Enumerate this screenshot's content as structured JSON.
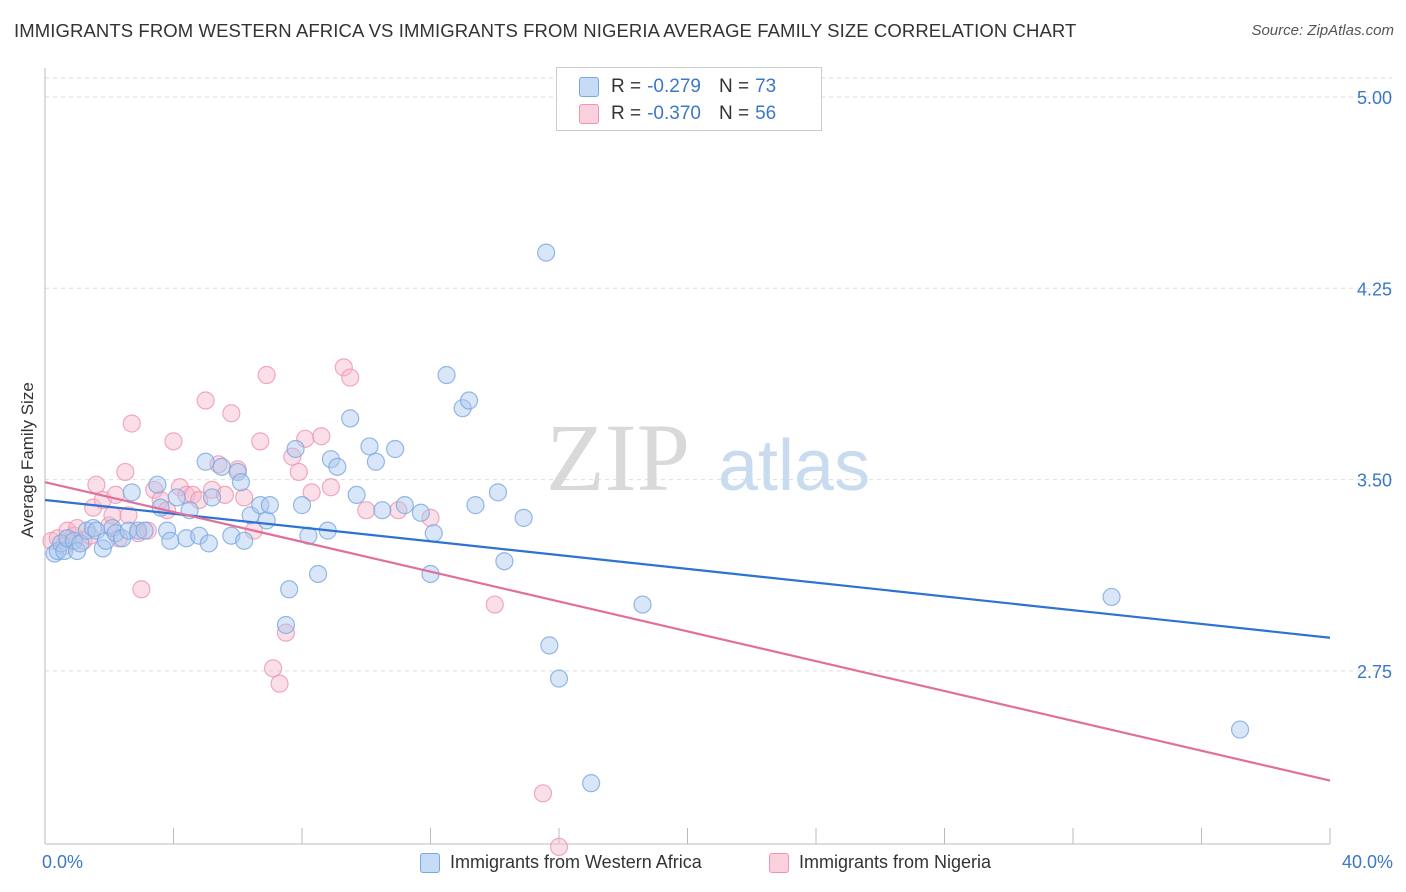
{
  "title": "IMMIGRANTS FROM WESTERN AFRICA VS IMMIGRANTS FROM NIGERIA AVERAGE FAMILY SIZE CORRELATION CHART",
  "source": "Source: ZipAtlas.com",
  "watermark": {
    "zip": "ZIP",
    "atlas": "atlas"
  },
  "legend": {
    "rows": [
      {
        "r_label": "R =",
        "r_value": "-0.279",
        "n_label": "N =",
        "n_value": "73"
      },
      {
        "r_label": "R =",
        "r_value": "-0.370",
        "n_label": "N =",
        "n_value": "56"
      }
    ]
  },
  "bottom_legend": {
    "western_africa": "Immigrants from Western Africa",
    "nigeria": "Immigrants from Nigeria"
  },
  "colors": {
    "blue_fill": "#a8c8f0",
    "blue_stroke": "#7aa8e0",
    "blue_line": "#2e72d2",
    "pink_fill": "#f7b8cb",
    "pink_stroke": "#ee95b2",
    "pink_line": "#e0709a",
    "axis_text": "#3b78c6",
    "grid": "#dddddd"
  },
  "chart_data": {
    "type": "scatter",
    "title": "IMMIGRANTS FROM WESTERN AFRICA VS IMMIGRANTS FROM NIGERIA AVERAGE FAMILY SIZE CORRELATION CHART",
    "xlabel": "",
    "ylabel": "Average Family Size",
    "xlim": [
      0,
      40
    ],
    "ylim": [
      2.05,
      5.1
    ],
    "x_tick_labels": [
      "0.0%",
      "40.0%"
    ],
    "y_ticks": [
      2.75,
      3.5,
      4.25,
      5.0
    ],
    "y_tick_labels": [
      "2.75",
      "3.50",
      "4.25",
      "5.00"
    ],
    "grid": "horizontal dashed",
    "legend_position": "top-center",
    "series": [
      {
        "name": "Immigrants from Western Africa",
        "color": "#a8c8f0",
        "trend": {
          "x": [
            0,
            40
          ],
          "y": [
            3.42,
            2.88
          ]
        },
        "points": [
          [
            0.3,
            3.21
          ],
          [
            0.4,
            3.22
          ],
          [
            0.5,
            3.25
          ],
          [
            0.6,
            3.22
          ],
          [
            0.7,
            3.27
          ],
          [
            0.9,
            3.26
          ],
          [
            1.0,
            3.22
          ],
          [
            1.1,
            3.25
          ],
          [
            1.3,
            3.3
          ],
          [
            1.5,
            3.31
          ],
          [
            1.6,
            3.3
          ],
          [
            1.8,
            3.23
          ],
          [
            1.9,
            3.26
          ],
          [
            2.1,
            3.31
          ],
          [
            2.2,
            3.29
          ],
          [
            2.4,
            3.27
          ],
          [
            2.6,
            3.3
          ],
          [
            2.7,
            3.45
          ],
          [
            2.9,
            3.3
          ],
          [
            3.1,
            3.3
          ],
          [
            3.5,
            3.48
          ],
          [
            3.6,
            3.39
          ],
          [
            3.8,
            3.3
          ],
          [
            3.9,
            3.26
          ],
          [
            4.1,
            3.43
          ],
          [
            4.4,
            3.27
          ],
          [
            4.5,
            3.38
          ],
          [
            4.8,
            3.28
          ],
          [
            5.0,
            3.57
          ],
          [
            5.1,
            3.25
          ],
          [
            5.2,
            3.43
          ],
          [
            5.5,
            3.55
          ],
          [
            5.8,
            3.28
          ],
          [
            6.0,
            3.53
          ],
          [
            6.1,
            3.49
          ],
          [
            6.2,
            3.26
          ],
          [
            6.4,
            3.36
          ],
          [
            6.7,
            3.4
          ],
          [
            6.9,
            3.34
          ],
          [
            7.0,
            3.4
          ],
          [
            7.5,
            2.93
          ],
          [
            7.6,
            3.07
          ],
          [
            7.8,
            3.62
          ],
          [
            8.0,
            3.4
          ],
          [
            8.2,
            3.28
          ],
          [
            8.5,
            3.13
          ],
          [
            8.8,
            3.3
          ],
          [
            8.9,
            3.58
          ],
          [
            9.1,
            3.55
          ],
          [
            9.5,
            3.74
          ],
          [
            9.7,
            3.44
          ],
          [
            10.1,
            3.63
          ],
          [
            10.3,
            3.57
          ],
          [
            10.5,
            3.38
          ],
          [
            10.9,
            3.62
          ],
          [
            11.2,
            3.4
          ],
          [
            11.7,
            3.37
          ],
          [
            12.0,
            3.13
          ],
          [
            12.1,
            3.29
          ],
          [
            12.5,
            3.91
          ],
          [
            13.0,
            3.78
          ],
          [
            13.2,
            3.81
          ],
          [
            13.4,
            3.4
          ],
          [
            14.1,
            3.45
          ],
          [
            14.3,
            3.18
          ],
          [
            14.9,
            3.35
          ],
          [
            15.6,
            4.39
          ],
          [
            15.7,
            2.85
          ],
          [
            16.0,
            2.72
          ],
          [
            17.0,
            2.31
          ],
          [
            18.6,
            3.01
          ],
          [
            33.2,
            3.04
          ],
          [
            37.2,
            2.52
          ]
        ]
      },
      {
        "name": "Immigrants from Nigeria",
        "color": "#f7b8cb",
        "trend": {
          "x": [
            0,
            40
          ],
          "y": [
            3.49,
            2.32
          ]
        },
        "points": [
          [
            0.2,
            3.26
          ],
          [
            0.4,
            3.27
          ],
          [
            0.6,
            3.24
          ],
          [
            0.7,
            3.3
          ],
          [
            0.9,
            3.28
          ],
          [
            1.0,
            3.31
          ],
          [
            1.2,
            3.26
          ],
          [
            1.4,
            3.28
          ],
          [
            1.5,
            3.39
          ],
          [
            1.6,
            3.48
          ],
          [
            1.8,
            3.42
          ],
          [
            2.0,
            3.32
          ],
          [
            2.1,
            3.36
          ],
          [
            2.2,
            3.44
          ],
          [
            2.3,
            3.27
          ],
          [
            2.5,
            3.53
          ],
          [
            2.6,
            3.36
          ],
          [
            2.7,
            3.72
          ],
          [
            2.9,
            3.29
          ],
          [
            3.0,
            3.07
          ],
          [
            3.2,
            3.3
          ],
          [
            3.4,
            3.46
          ],
          [
            3.6,
            3.42
          ],
          [
            3.8,
            3.38
          ],
          [
            4.0,
            3.65
          ],
          [
            4.2,
            3.47
          ],
          [
            4.4,
            3.44
          ],
          [
            4.6,
            3.44
          ],
          [
            4.8,
            3.42
          ],
          [
            5.0,
            3.81
          ],
          [
            5.2,
            3.46
          ],
          [
            5.4,
            3.56
          ],
          [
            5.6,
            3.44
          ],
          [
            5.8,
            3.76
          ],
          [
            6.0,
            3.54
          ],
          [
            6.2,
            3.43
          ],
          [
            6.5,
            3.3
          ],
          [
            6.7,
            3.65
          ],
          [
            6.9,
            3.91
          ],
          [
            7.1,
            2.76
          ],
          [
            7.3,
            2.7
          ],
          [
            7.5,
            2.9
          ],
          [
            7.7,
            3.59
          ],
          [
            7.9,
            3.53
          ],
          [
            8.1,
            3.66
          ],
          [
            8.3,
            3.45
          ],
          [
            8.6,
            3.67
          ],
          [
            8.9,
            3.47
          ],
          [
            9.3,
            3.94
          ],
          [
            9.5,
            3.9
          ],
          [
            10.0,
            3.38
          ],
          [
            11.0,
            3.38
          ],
          [
            12.0,
            3.35
          ],
          [
            14.0,
            3.01
          ],
          [
            15.5,
            2.27
          ],
          [
            16.0,
            2.06
          ]
        ]
      }
    ]
  }
}
